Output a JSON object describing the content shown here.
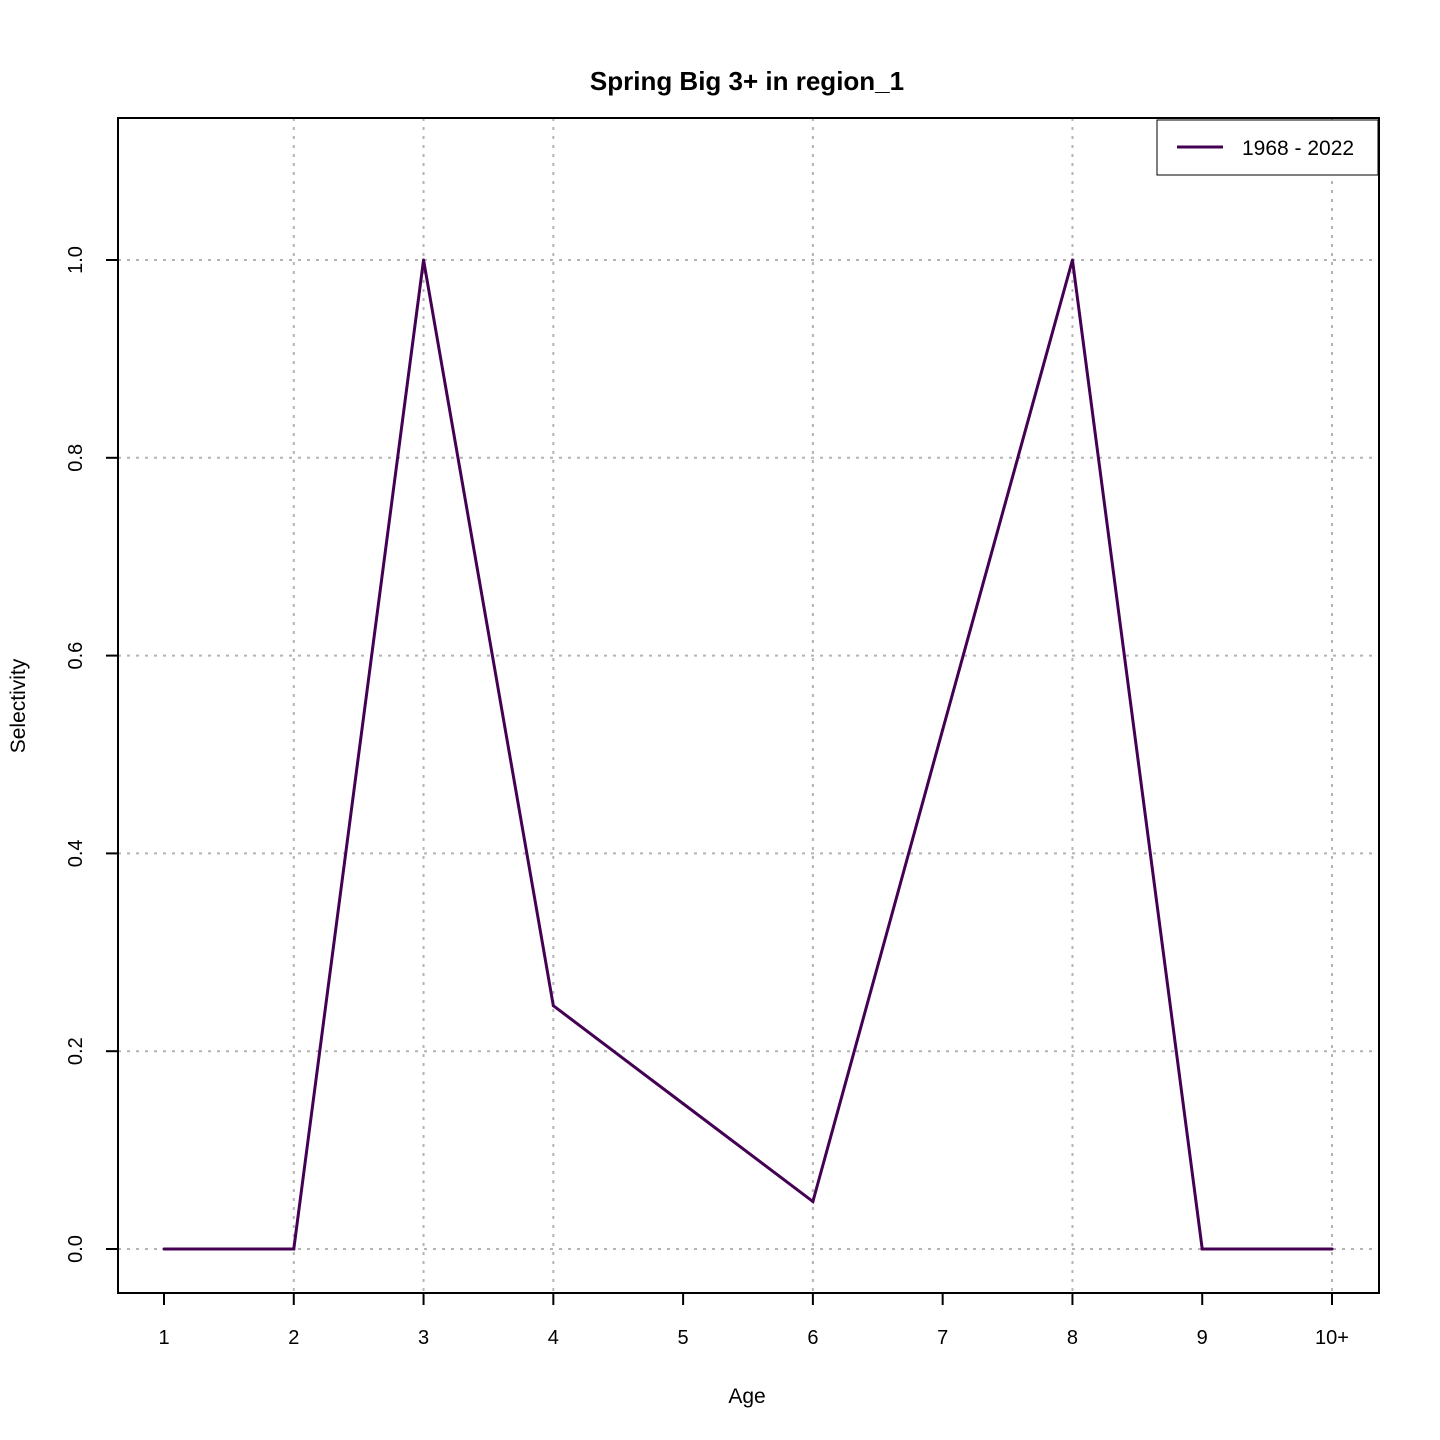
{
  "chart_data": {
    "type": "line",
    "title": "Spring Big 3+ in region_1",
    "xlabel": "Age",
    "ylabel": "Selectivity",
    "categories": [
      "1",
      "2",
      "3",
      "4",
      "5",
      "6",
      "7",
      "8",
      "9",
      "10+"
    ],
    "y_ticks": [
      "0.0",
      "0.2",
      "0.4",
      "0.6",
      "0.8",
      "1.0"
    ],
    "ylim": [
      0,
      1.1
    ],
    "grid": true,
    "legend_position": "top-right",
    "series": [
      {
        "name": "1968 - 2022",
        "color": "#440154",
        "values": [
          0.0,
          0.0,
          1.0,
          0.246,
          0.147,
          0.048,
          0.525,
          1.0,
          0.0,
          0.0
        ]
      }
    ]
  }
}
